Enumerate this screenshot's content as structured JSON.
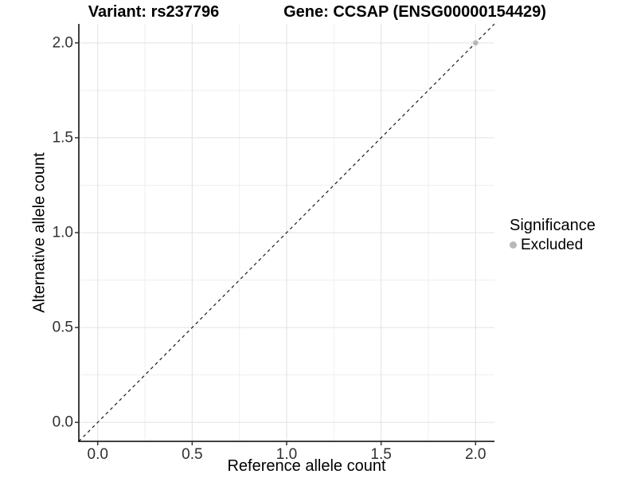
{
  "chart_data": {
    "type": "scatter",
    "title_left": "Variant: rs237796",
    "title_right": "Gene: CCSAP (ENSG00000154429)",
    "xlabel": "Reference allele count",
    "ylabel": "Alternative allele count",
    "xlim": [
      -0.1,
      2.1
    ],
    "ylim": [
      -0.1,
      2.1
    ],
    "x_ticks": {
      "values": [
        0,
        0.5,
        1,
        1.5,
        2
      ],
      "labels": [
        "0.0",
        "0.5",
        "1.0",
        "1.5",
        "2.0"
      ]
    },
    "y_ticks": {
      "values": [
        0,
        0.5,
        1,
        1.5,
        2
      ],
      "labels": [
        "0.0",
        "0.5",
        "1.0",
        "1.5",
        "2.0"
      ]
    },
    "minor_ticks": [
      0.25,
      0.75,
      1.25,
      1.75
    ],
    "grid": {
      "major_color": "#e2e2e2",
      "minor_color": "#efefef",
      "background": "#ffffff"
    },
    "reference_line": {
      "type": "abline",
      "slope": 1,
      "intercept": 0,
      "style": "dashed",
      "color": "#1a1a1a"
    },
    "series": [
      {
        "name": "Excluded",
        "color": "#b8b8b8",
        "points": [
          {
            "x": 2,
            "y": 2
          }
        ]
      }
    ],
    "legend": {
      "title": "Significance",
      "position": "right",
      "entries": [
        {
          "label": "Excluded",
          "color": "#b8b8b8"
        }
      ]
    },
    "colors": {
      "axis_line": "#000000",
      "tick_mark": "#333333",
      "tick_text": "#303030"
    }
  }
}
